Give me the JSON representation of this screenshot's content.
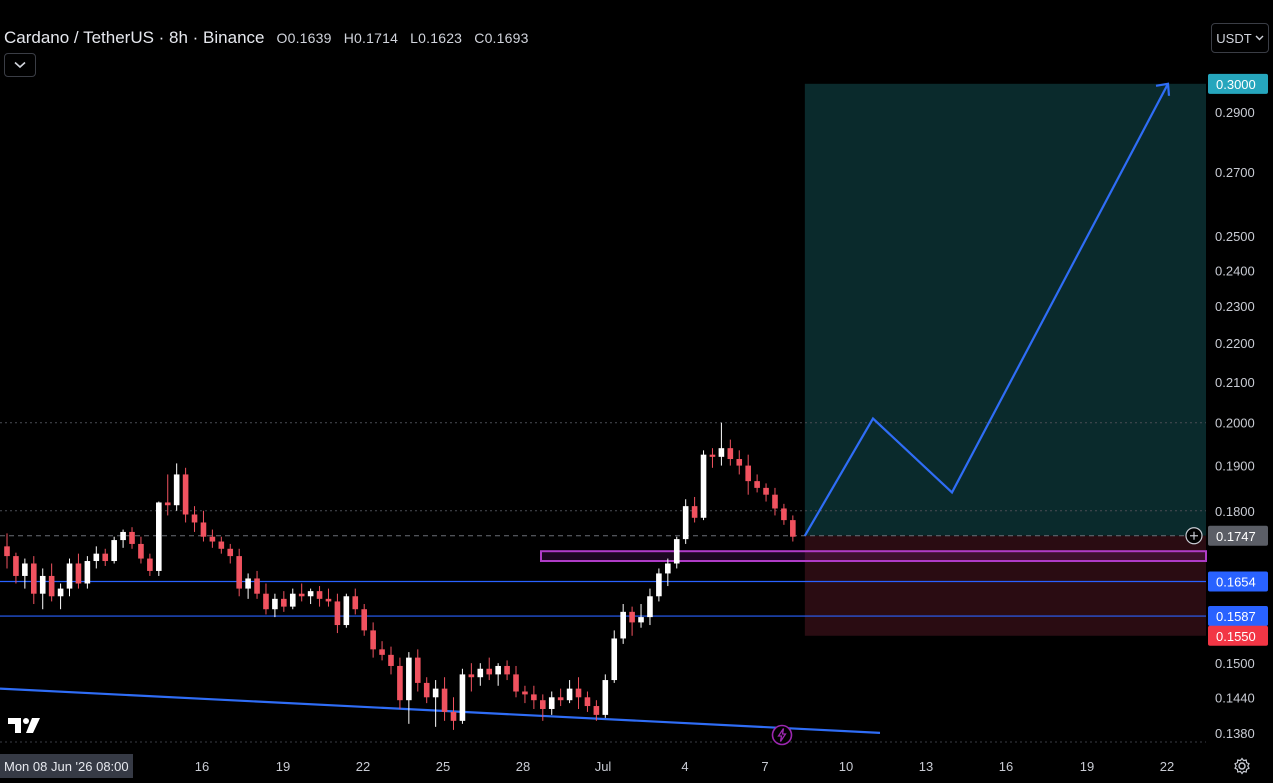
{
  "header": {
    "symbol": "Cardano / TetherUS · 8h · Binance",
    "open": "O0.1639",
    "high": "H0.1714",
    "low": "L0.1623",
    "close": "C0.1693"
  },
  "currency_button": {
    "label": "USDT"
  },
  "date_badge": {
    "label": "Mon 08 Jun '26   08:00"
  },
  "y_axis": {
    "ticks": [
      "0.2900",
      "0.2700",
      "0.2500",
      "0.2400",
      "0.2300",
      "0.2200",
      "0.2100",
      "0.2000",
      "0.1900",
      "0.1800",
      "0.1500",
      "0.1440",
      "0.1380"
    ],
    "scale": "log"
  },
  "x_axis": {
    "ticks": [
      "16",
      "19",
      "22",
      "25",
      "28",
      "Jul",
      "4",
      "7",
      "10",
      "13",
      "16",
      "19",
      "22"
    ]
  },
  "price_tags": {
    "target": {
      "text": "0.3000",
      "color": "#26a6bd"
    },
    "current": {
      "text": "0.1747",
      "color": "#5b5e66"
    },
    "level1": {
      "text": "0.1654",
      "color": "#2962ff"
    },
    "level2": {
      "text": "0.1587",
      "color": "#2962ff"
    },
    "stop": {
      "text": "0.1550",
      "color": "#f23645"
    }
  },
  "colors": {
    "up": "#ffffff",
    "down": "#f0525f",
    "projection": "#2f6df6",
    "profit_zone": "#0a2a2c",
    "loss_zone": "#2a0c12",
    "zone_box": "#b03cc8"
  },
  "chart_data": {
    "type": "candlestick",
    "symbol": "Cardano / TetherUS",
    "interval": "8h",
    "exchange": "Binance",
    "ohlc": [
      [
        0.1725,
        0.1752,
        0.168,
        0.1705
      ],
      [
        0.1705,
        0.1712,
        0.165,
        0.1665
      ],
      [
        0.1665,
        0.17,
        0.164,
        0.169
      ],
      [
        0.169,
        0.1705,
        0.161,
        0.163
      ],
      [
        0.163,
        0.168,
        0.16,
        0.1665
      ],
      [
        0.1665,
        0.169,
        0.1615,
        0.1625
      ],
      [
        0.1625,
        0.165,
        0.16,
        0.164
      ],
      [
        0.164,
        0.17,
        0.1625,
        0.169
      ],
      [
        0.169,
        0.171,
        0.164,
        0.165
      ],
      [
        0.165,
        0.1705,
        0.164,
        0.1695
      ],
      [
        0.1695,
        0.1725,
        0.168,
        0.171
      ],
      [
        0.171,
        0.172,
        0.1685,
        0.1695
      ],
      [
        0.1695,
        0.1745,
        0.169,
        0.1738
      ],
      [
        0.1738,
        0.176,
        0.1722,
        0.1755
      ],
      [
        0.1755,
        0.1765,
        0.172,
        0.173
      ],
      [
        0.173,
        0.1745,
        0.169,
        0.17
      ],
      [
        0.17,
        0.171,
        0.1665,
        0.1675
      ],
      [
        0.1675,
        0.182,
        0.1665,
        0.1818
      ],
      [
        0.1818,
        0.188,
        0.179,
        0.1812
      ],
      [
        0.1812,
        0.1905,
        0.18,
        0.188
      ],
      [
        0.188,
        0.1895,
        0.1775,
        0.1792
      ],
      [
        0.1792,
        0.181,
        0.1755,
        0.1775
      ],
      [
        0.1775,
        0.18,
        0.1735,
        0.1745
      ],
      [
        0.1745,
        0.176,
        0.1722,
        0.1735
      ],
      [
        0.1735,
        0.1745,
        0.171,
        0.172
      ],
      [
        0.172,
        0.173,
        0.169,
        0.1705
      ],
      [
        0.1705,
        0.172,
        0.1625,
        0.164
      ],
      [
        0.164,
        0.167,
        0.162,
        0.166
      ],
      [
        0.166,
        0.1675,
        0.162,
        0.163
      ],
      [
        0.163,
        0.165,
        0.159,
        0.16
      ],
      [
        0.16,
        0.163,
        0.1585,
        0.162
      ],
      [
        0.162,
        0.1635,
        0.1595,
        0.1605
      ],
      [
        0.1605,
        0.164,
        0.16,
        0.163
      ],
      [
        0.163,
        0.165,
        0.1615,
        0.1625
      ],
      [
        0.1625,
        0.164,
        0.161,
        0.1635
      ],
      [
        0.1635,
        0.1645,
        0.1605,
        0.162
      ],
      [
        0.162,
        0.164,
        0.1605,
        0.1615
      ],
      [
        0.1615,
        0.163,
        0.1555,
        0.157
      ],
      [
        0.157,
        0.163,
        0.1565,
        0.1625
      ],
      [
        0.1625,
        0.164,
        0.159,
        0.16
      ],
      [
        0.16,
        0.161,
        0.155,
        0.156
      ],
      [
        0.156,
        0.1575,
        0.151,
        0.1525
      ],
      [
        0.1525,
        0.154,
        0.1505,
        0.1515
      ],
      [
        0.1515,
        0.153,
        0.148,
        0.1495
      ],
      [
        0.1495,
        0.151,
        0.142,
        0.1435
      ],
      [
        0.1435,
        0.152,
        0.1395,
        0.151
      ],
      [
        0.151,
        0.1525,
        0.145,
        0.1465
      ],
      [
        0.1465,
        0.1475,
        0.143,
        0.144
      ],
      [
        0.144,
        0.147,
        0.139,
        0.1455
      ],
      [
        0.1455,
        0.1475,
        0.14,
        0.1415
      ],
      [
        0.1415,
        0.144,
        0.1385,
        0.14
      ],
      [
        0.14,
        0.149,
        0.1395,
        0.148
      ],
      [
        0.148,
        0.15,
        0.145,
        0.1475
      ],
      [
        0.1475,
        0.15,
        0.146,
        0.149
      ],
      [
        0.149,
        0.151,
        0.147,
        0.148
      ],
      [
        0.148,
        0.15,
        0.146,
        0.1495
      ],
      [
        0.1495,
        0.1505,
        0.147,
        0.148
      ],
      [
        0.148,
        0.1495,
        0.144,
        0.145
      ],
      [
        0.145,
        0.146,
        0.143,
        0.1445
      ],
      [
        0.1445,
        0.146,
        0.142,
        0.1435
      ],
      [
        0.1435,
        0.1445,
        0.14,
        0.142
      ],
      [
        0.142,
        0.145,
        0.141,
        0.144
      ],
      [
        0.144,
        0.1455,
        0.1425,
        0.1435
      ],
      [
        0.1435,
        0.147,
        0.143,
        0.1455
      ],
      [
        0.1455,
        0.1475,
        0.142,
        0.144
      ],
      [
        0.144,
        0.145,
        0.1415,
        0.1425
      ],
      [
        0.1425,
        0.1435,
        0.14,
        0.141
      ],
      [
        0.141,
        0.148,
        0.1405,
        0.147
      ],
      [
        0.147,
        0.156,
        0.1465,
        0.1545
      ],
      [
        0.1545,
        0.161,
        0.1535,
        0.1595
      ],
      [
        0.1595,
        0.1605,
        0.155,
        0.1575
      ],
      [
        0.1575,
        0.161,
        0.1565,
        0.1585
      ],
      [
        0.1585,
        0.164,
        0.157,
        0.1625
      ],
      [
        0.1625,
        0.168,
        0.1615,
        0.167
      ],
      [
        0.167,
        0.17,
        0.1645,
        0.169
      ],
      [
        0.169,
        0.1745,
        0.168,
        0.174
      ],
      [
        0.174,
        0.1825,
        0.173,
        0.181
      ],
      [
        0.181,
        0.183,
        0.1775,
        0.1785
      ],
      [
        0.1785,
        0.1935,
        0.178,
        0.1925
      ],
      [
        0.1925,
        0.194,
        0.1895,
        0.192
      ],
      [
        0.192,
        0.2,
        0.19,
        0.194
      ],
      [
        0.194,
        0.196,
        0.19,
        0.1915
      ],
      [
        0.1915,
        0.1935,
        0.188,
        0.19
      ],
      [
        0.19,
        0.1925,
        0.1835,
        0.1865
      ],
      [
        0.1865,
        0.188,
        0.184,
        0.185
      ],
      [
        0.185,
        0.186,
        0.182,
        0.1835
      ],
      [
        0.1835,
        0.185,
        0.179,
        0.1805
      ],
      [
        0.1805,
        0.1815,
        0.177,
        0.178
      ],
      [
        0.178,
        0.179,
        0.1735,
        0.1745
      ]
    ],
    "levels": [
      0.18,
      0.1654,
      0.1587
    ],
    "projection_path": [
      0.1747,
      0.201,
      0.184,
      0.3
    ],
    "long_position": {
      "entry": 0.1747,
      "target": 0.3,
      "stop": 0.155
    },
    "zone": {
      "top": 0.1715,
      "bottom": 0.1695
    },
    "trendline": [
      0.1455,
      0.138
    ],
    "ylim": [
      0.1365,
      0.305
    ]
  }
}
